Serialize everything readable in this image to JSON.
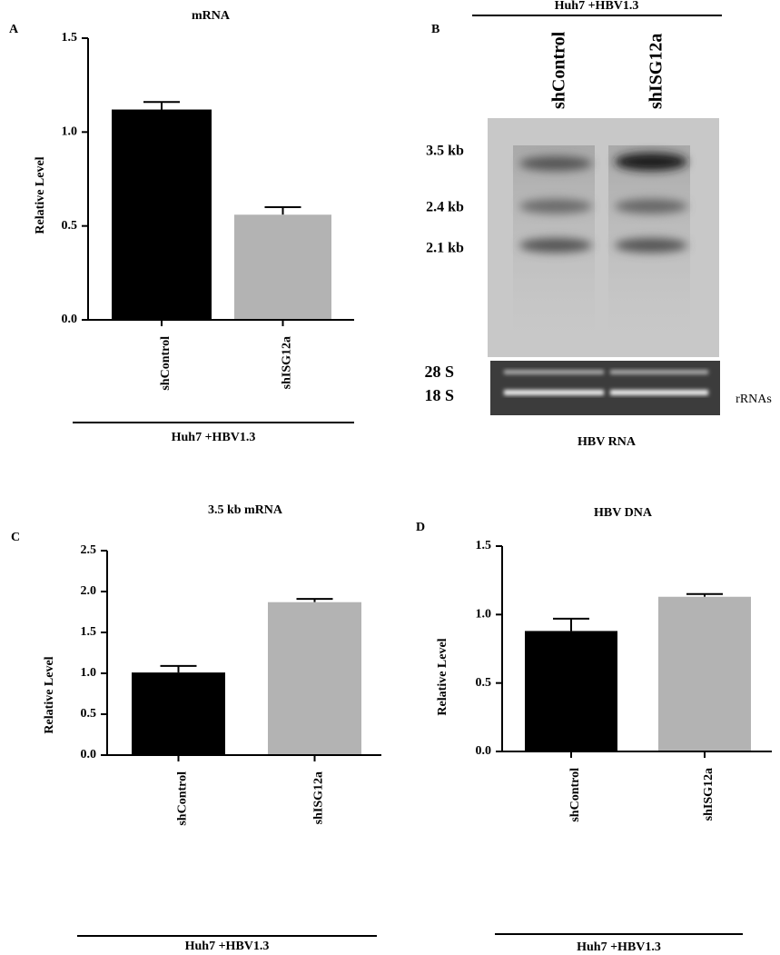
{
  "chart_data": [
    {
      "type": "bar",
      "panel": "A",
      "title": "mRNA",
      "y_label": "Relative Level",
      "categories": [
        "shControl",
        "shISG12a"
      ],
      "values": [
        1.12,
        0.56
      ],
      "errors": [
        0.04,
        0.04
      ],
      "colors": [
        "#000000",
        "#b3b3b3"
      ],
      "group_label": "Huh7 +HBV1.3",
      "ylim": [
        0,
        1.5
      ],
      "yticks": [
        {
          "value": 0,
          "label": "0.0"
        },
        {
          "value": 0.5,
          "label": "0.5"
        },
        {
          "value": 1,
          "label": "1.0"
        },
        {
          "value": 1.5,
          "label": "1.5"
        }
      ]
    },
    {
      "type": "bar",
      "panel": "C",
      "title": "3.5 kb mRNA",
      "y_label": "Relative Level",
      "categories": [
        "shControl",
        "shISG12a"
      ],
      "values": [
        1.01,
        1.87
      ],
      "errors": [
        0.08,
        0.04
      ],
      "colors": [
        "#000000",
        "#b3b3b3"
      ],
      "group_label": "Huh7 +HBV1.3",
      "ylim": [
        0,
        2.5
      ],
      "yticks": [
        {
          "value": 0,
          "label": "0.0"
        },
        {
          "value": 0.5,
          "label": "0.5"
        },
        {
          "value": 1,
          "label": "1.0"
        },
        {
          "value": 1.5,
          "label": "1.5"
        },
        {
          "value": 2,
          "label": "2.0"
        },
        {
          "value": 2.5,
          "label": "2.5"
        }
      ]
    },
    {
      "type": "bar",
      "panel": "D",
      "title": "HBV DNA",
      "y_label": "Relative Level",
      "categories": [
        "shControl",
        "shISG12a"
      ],
      "values": [
        0.88,
        1.13
      ],
      "errors": [
        0.09,
        0.02
      ],
      "colors": [
        "#000000",
        "#b3b3b3"
      ],
      "group_label": "Huh7 +HBV1.3",
      "ylim": [
        0,
        1.5
      ],
      "yticks": [
        {
          "value": 0,
          "label": "0.0"
        },
        {
          "value": 0.5,
          "label": "0.5"
        },
        {
          "value": 1,
          "label": "1.0"
        },
        {
          "value": 1.5,
          "label": "1.5"
        }
      ]
    }
  ],
  "blot": {
    "panel": "B",
    "header": "Huh7 +HBV1.3",
    "lanes": [
      "shControl",
      "shISG12a"
    ],
    "bands": [
      "3.5 kb",
      "2.4 kb",
      "2.1 kb"
    ],
    "rrna": [
      "28 S",
      "18 S"
    ],
    "rrna_label": "rRNAs",
    "caption": "HBV RNA"
  }
}
